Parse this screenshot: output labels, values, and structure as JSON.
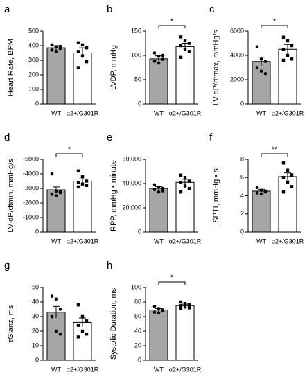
{
  "chart_data": [
    {
      "type": "bar",
      "panel": "a",
      "ylabel": "Heart Rate, BPM",
      "categories": [
        "WT",
        "α2+/G301R"
      ],
      "values": [
        385,
        350
      ],
      "errors": [
        15,
        35
      ],
      "points": [
        [
          405,
          392,
          380,
          370,
          360,
          395
        ],
        [
          420,
          405,
          385,
          360,
          330,
          290,
          250
        ]
      ],
      "colors": [
        "#a6a6a6",
        "#ffffff"
      ],
      "ylim": [
        0,
        500
      ],
      "yticks": [
        0,
        100,
        200,
        300,
        400,
        500
      ]
    },
    {
      "type": "bar",
      "panel": "b",
      "ylabel": "LVDP, mmHg",
      "categories": [
        "WT",
        "α2+/G301R"
      ],
      "values": [
        93,
        118
      ],
      "errors": [
        6,
        7
      ],
      "points": [
        [
          105,
          98,
          92,
          88,
          84,
          100
        ],
        [
          138,
          130,
          125,
          120,
          112,
          108,
          96
        ]
      ],
      "colors": [
        "#a6a6a6",
        "#ffffff"
      ],
      "ylim": [
        0,
        150
      ],
      "yticks": [
        0,
        50,
        100,
        150
      ],
      "significance": "*"
    },
    {
      "type": "bar",
      "panel": "c",
      "ylabel": "LV dP/dtmax, mmHg/s",
      "categories": [
        "WT",
        "α2+/G301R"
      ],
      "values": [
        3500,
        4500
      ],
      "errors": [
        350,
        400
      ],
      "points": [
        [
          4700,
          3700,
          3500,
          3000,
          2700,
          2500
        ],
        [
          5500,
          5200,
          4800,
          4500,
          4000,
          3700,
          3600
        ]
      ],
      "colors": [
        "#a6a6a6",
        "#ffffff"
      ],
      "ylim": [
        0,
        6000
      ],
      "yticks": [
        0,
        2000,
        4000,
        6000
      ],
      "significance": "*"
    },
    {
      "type": "bar",
      "panel": "d",
      "ylabel": "LV dP/dtmin, mmHg/s",
      "categories": [
        "WT",
        "α2+/G301R"
      ],
      "values": [
        -2900,
        -3500
      ],
      "errors": [
        200,
        150
      ],
      "points": [
        [
          -4000,
          -2800,
          -2700,
          -2600,
          -2500,
          -2800
        ],
        [
          -4200,
          -3800,
          -3500,
          -3400,
          -3300,
          -3200,
          -3100
        ]
      ],
      "colors": [
        "#a6a6a6",
        "#ffffff"
      ],
      "ylim": [
        0,
        -5000
      ],
      "yticks": [
        0,
        -1000,
        -2000,
        -3000,
        -4000,
        -5000
      ],
      "significance": "*"
    },
    {
      "type": "bar",
      "panel": "e",
      "ylabel": "RPP, mmHg • minute",
      "categories": [
        "WT",
        "α2+/G301R"
      ],
      "values": [
        36000,
        41000
      ],
      "errors": [
        1500,
        2500
      ],
      "points": [
        [
          39000,
          37000,
          36000,
          35000,
          33000,
          34000
        ],
        [
          47000,
          45000,
          42000,
          41000,
          38000,
          36000,
          33000
        ]
      ],
      "colors": [
        "#a6a6a6",
        "#ffffff"
      ],
      "ylim": [
        0,
        60000
      ],
      "yticks": [
        0,
        {
          "value": 20000,
          "label": "20,000"
        },
        {
          "value": 40000,
          "label": "40,000"
        },
        {
          "value": 60000,
          "label": "60,000"
        }
      ]
    },
    {
      "type": "bar",
      "panel": "f",
      "ylabel": "SPTI, mmHg • s",
      "categories": [
        "WT",
        "α2+/G301R"
      ],
      "values": [
        4.5,
        6.1
      ],
      "errors": [
        0.2,
        0.4
      ],
      "points": [
        [
          4.9,
          4.6,
          4.5,
          4.3,
          4.2,
          4.4
        ],
        [
          7.6,
          6.8,
          6.3,
          6.0,
          5.5,
          5.0,
          4.4
        ]
      ],
      "colors": [
        "#a6a6a6",
        "#ffffff"
      ],
      "ylim": [
        0,
        8
      ],
      "yticks": [
        0,
        2,
        4,
        6,
        8
      ],
      "significance": "**"
    },
    {
      "type": "bar",
      "panel": "g",
      "ylabel": "τGlanz, ms",
      "categories": [
        "WT",
        "α2+/G301R"
      ],
      "values": [
        33,
        26
      ],
      "errors": [
        4,
        3
      ],
      "points": [
        [
          44,
          42,
          35,
          30,
          20,
          18
        ],
        [
          38,
          30,
          27,
          24,
          20,
          18,
          16
        ]
      ],
      "colors": [
        "#a6a6a6",
        "#ffffff"
      ],
      "ylim": [
        0,
        50
      ],
      "yticks": [
        0,
        10,
        20,
        30,
        40,
        50
      ]
    },
    {
      "type": "bar",
      "panel": "h",
      "ylabel": "Systolic Duration, ms",
      "categories": [
        "WT",
        "α2+/G301R"
      ],
      "values": [
        69,
        75
      ],
      "errors": [
        2,
        2
      ],
      "points": [
        [
          74,
          71,
          69,
          66,
          65,
          68
        ],
        [
          80,
          78,
          76,
          75,
          73,
          72,
          71
        ]
      ],
      "colors": [
        "#a6a6a6",
        "#ffffff"
      ],
      "ylim": [
        0,
        100
      ],
      "yticks": [
        0,
        20,
        40,
        60,
        80,
        100
      ],
      "significance": "*"
    }
  ]
}
